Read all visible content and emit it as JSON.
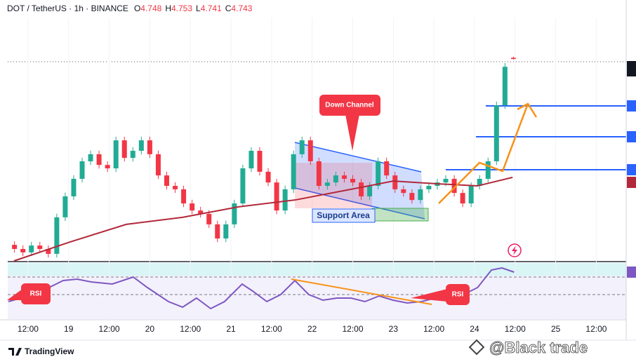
{
  "chart_data": {
    "type": "candlestick",
    "title": "DOT / TetherUS · 1h · BINANCE",
    "ohlc_legend": [
      {
        "label": "O",
        "value": 4.748
      },
      {
        "label": "H",
        "value": 4.753
      },
      {
        "label": "L",
        "value": 4.741
      },
      {
        "label": "C",
        "value": 4.743
      }
    ],
    "up_color": "#22ab94",
    "down_color": "#f23645",
    "x": [
      -4,
      -1.5,
      1,
      3.5,
      6,
      8.5,
      11,
      13.5,
      16,
      18.5,
      21,
      23.5,
      26,
      28.5,
      31,
      33.5,
      36,
      38.5,
      41,
      43.5,
      46,
      48.5,
      51,
      53.5,
      56,
      58.5,
      61,
      63.5,
      66,
      68.5,
      71,
      73.5,
      76,
      78.5,
      81,
      83.5,
      86,
      88.5,
      91,
      93.5,
      96,
      98.5,
      101,
      103.5,
      106,
      108.5,
      111,
      113.5,
      116,
      118.5,
      121,
      123.5,
      126,
      128.5,
      131,
      133.5,
      136,
      138.5,
      141,
      143.5
    ],
    "open": [
      3.98,
      3.963,
      3.949,
      3.977,
      3.963,
      3.943,
      4.093,
      4.179,
      4.251,
      4.323,
      4.352,
      4.308,
      4.294,
      4.409,
      4.337,
      4.366,
      4.409,
      4.352,
      4.265,
      4.222,
      4.208,
      4.15,
      4.121,
      4.107,
      4.064,
      4.006,
      4.064,
      4.15,
      4.294,
      4.366,
      4.28,
      4.236,
      4.121,
      4.208,
      4.352,
      4.409,
      4.323,
      4.222,
      4.236,
      4.265,
      4.251,
      4.236,
      4.179,
      4.222,
      4.323,
      4.265,
      4.208,
      4.193,
      4.164,
      4.208,
      4.222,
      4.236,
      4.251,
      4.193,
      4.15,
      4.222,
      4.251,
      4.323,
      4.553,
      4.748
    ],
    "high": [
      3.995,
      3.978,
      3.992,
      3.992,
      3.978,
      4.108,
      4.194,
      4.266,
      4.338,
      4.367,
      4.367,
      4.323,
      4.424,
      4.424,
      4.381,
      4.424,
      4.424,
      4.367,
      4.28,
      4.237,
      4.223,
      4.165,
      4.136,
      4.122,
      4.079,
      4.079,
      4.165,
      4.309,
      4.381,
      4.381,
      4.295,
      4.251,
      4.223,
      4.367,
      4.424,
      4.424,
      4.338,
      4.251,
      4.28,
      4.28,
      4.266,
      4.251,
      4.237,
      4.338,
      4.338,
      4.28,
      4.223,
      4.208,
      4.223,
      4.237,
      4.251,
      4.266,
      4.266,
      4.208,
      4.237,
      4.266,
      4.338,
      4.568,
      4.726,
      4.753
    ],
    "low": [
      3.948,
      3.934,
      3.934,
      3.948,
      3.928,
      3.928,
      4.078,
      4.164,
      4.236,
      4.308,
      4.293,
      4.279,
      4.279,
      4.322,
      4.322,
      4.351,
      4.337,
      4.25,
      4.207,
      4.193,
      4.135,
      4.106,
      4.092,
      4.049,
      3.991,
      3.991,
      4.049,
      4.135,
      4.279,
      4.265,
      4.221,
      4.106,
      4.106,
      4.193,
      4.337,
      4.308,
      4.207,
      4.207,
      4.221,
      4.236,
      4.221,
      4.164,
      4.164,
      4.207,
      4.25,
      4.193,
      4.178,
      4.149,
      4.149,
      4.193,
      4.207,
      4.221,
      4.178,
      4.135,
      4.135,
      4.207,
      4.236,
      4.308,
      4.538,
      4.741
    ],
    "close": [
      3.963,
      3.949,
      3.977,
      3.963,
      3.943,
      4.093,
      4.179,
      4.251,
      4.323,
      4.352,
      4.308,
      4.294,
      4.409,
      4.337,
      4.366,
      4.409,
      4.352,
      4.265,
      4.222,
      4.208,
      4.15,
      4.121,
      4.107,
      4.064,
      4.006,
      4.064,
      4.15,
      4.294,
      4.366,
      4.28,
      4.236,
      4.121,
      4.208,
      4.352,
      4.409,
      4.323,
      4.222,
      4.236,
      4.265,
      4.251,
      4.236,
      4.179,
      4.222,
      4.323,
      4.265,
      4.208,
      4.193,
      4.164,
      4.208,
      4.222,
      4.236,
      4.251,
      4.193,
      4.15,
      4.222,
      4.251,
      4.323,
      4.553,
      4.711,
      4.743
    ],
    "xlim": [
      -6,
      176
    ],
    "xticks": [
      {
        "value": 0,
        "label": "12:00"
      },
      {
        "value": 12,
        "label": "19"
      },
      {
        "value": 24,
        "label": "12:00"
      },
      {
        "value": 36,
        "label": "20"
      },
      {
        "value": 48,
        "label": "12:00"
      },
      {
        "value": 60,
        "label": "21"
      },
      {
        "value": 72,
        "label": "12:00"
      },
      {
        "value": 84,
        "label": "22"
      },
      {
        "value": 96,
        "label": "12:00"
      },
      {
        "value": 108,
        "label": "23"
      },
      {
        "value": 120,
        "label": "12:00"
      },
      {
        "value": 132,
        "label": "24"
      },
      {
        "value": 144,
        "label": "12:00"
      },
      {
        "value": 156,
        "label": "25"
      },
      {
        "value": 168,
        "label": "12:00"
      }
    ],
    "ylim": [
      3.914,
      4.87
    ],
    "ma": {
      "color": "#b2283a",
      "x": [
        -4.15,
        12.46,
        29.06,
        45.67,
        62.28,
        78.89,
        95.5,
        107.96,
        120.42,
        132.87,
        143.25
      ],
      "values": [
        3.914,
        3.992,
        4.064,
        4.093,
        4.136,
        4.164,
        4.208,
        4.242,
        4.231,
        4.222,
        4.257
      ]
    },
    "rsi": {
      "color": "#7e57c2",
      "ylim": [
        22,
        86
      ],
      "levels": [
        70,
        50
      ],
      "x": [
        -5.8,
        -2.1,
        2.1,
        6.2,
        10.4,
        14.5,
        18.7,
        24.9,
        31.1,
        35.3,
        41.5,
        45.7,
        49.8,
        54.0,
        58.1,
        63.3,
        66.4,
        70.6,
        74.7,
        78.9,
        83.0,
        87.2,
        91.3,
        95.5,
        99.6,
        103.8,
        107.9,
        112.1,
        116.3,
        120.4,
        124.6,
        128.7,
        132.9,
        137.0,
        140.1,
        143.7
      ],
      "values": [
        42,
        46,
        50,
        58,
        66,
        67.6,
        64.4,
        62,
        70,
        58,
        42,
        35.6,
        46,
        34,
        42,
        62,
        54,
        42,
        50,
        66,
        50,
        43.6,
        46,
        46,
        42,
        48.4,
        43.6,
        40.4,
        42,
        46,
        54,
        50,
        58,
        78,
        80.4,
        75.6
      ]
    },
    "annotations": [
      "Down Channel",
      "Support Area",
      "RSI",
      "RSI"
    ],
    "footer": "TradingView",
    "watermark": "@Black trade"
  }
}
